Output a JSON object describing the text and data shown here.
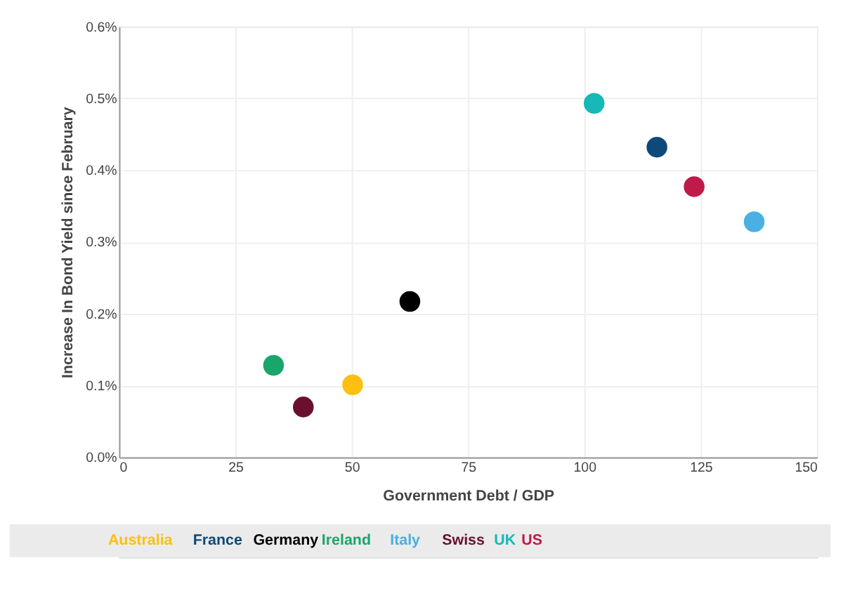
{
  "chart_data": {
    "type": "scatter",
    "xlabel": "Government Debt / GDP",
    "ylabel": "Increase In Bond Yield since February",
    "xlim": [
      0,
      150
    ],
    "xticks": [
      0,
      25,
      50,
      75,
      100,
      125,
      150
    ],
    "ylim": [
      0,
      0.6
    ],
    "yticks": [
      {
        "value": 0,
        "label": "0.0%"
      },
      {
        "value": 0.1,
        "label": "0.1%"
      },
      {
        "value": 0.2,
        "label": "0.2%"
      },
      {
        "value": 0.3,
        "label": "0.3%"
      },
      {
        "value": 0.4,
        "label": "0.4%"
      },
      {
        "value": 0.5,
        "label": "0.5%"
      },
      {
        "value": 0.6,
        "label": "0.6%"
      }
    ],
    "grid": true,
    "marker": "circle",
    "legend": "bottom",
    "series": [
      {
        "name": "Australia",
        "color": "#fdc010",
        "x": [
          50.2
        ],
        "values": [
          0.101
        ]
      },
      {
        "name": "France",
        "color": "#0d4a7a",
        "x": [
          115.6
        ],
        "values": [
          0.432
        ]
      },
      {
        "name": "Germany",
        "color": "#000000",
        "x": [
          62.5
        ],
        "values": [
          0.217
        ]
      },
      {
        "name": "Ireland",
        "color": "#1aa66a",
        "x": [
          33.2
        ],
        "values": [
          0.128
        ]
      },
      {
        "name": "Italy",
        "color": "#4ab0e4",
        "x": [
          136.5
        ],
        "values": [
          0.328
        ]
      },
      {
        "name": "Swiss",
        "color": "#6b0f2f",
        "x": [
          39.6
        ],
        "values": [
          0.07
        ]
      },
      {
        "name": "UK",
        "color": "#16b8b8",
        "x": [
          102.1
        ],
        "values": [
          0.493
        ]
      },
      {
        "name": "US",
        "color": "#c01a4a",
        "x": [
          123.6
        ],
        "values": [
          0.377
        ]
      }
    ]
  }
}
